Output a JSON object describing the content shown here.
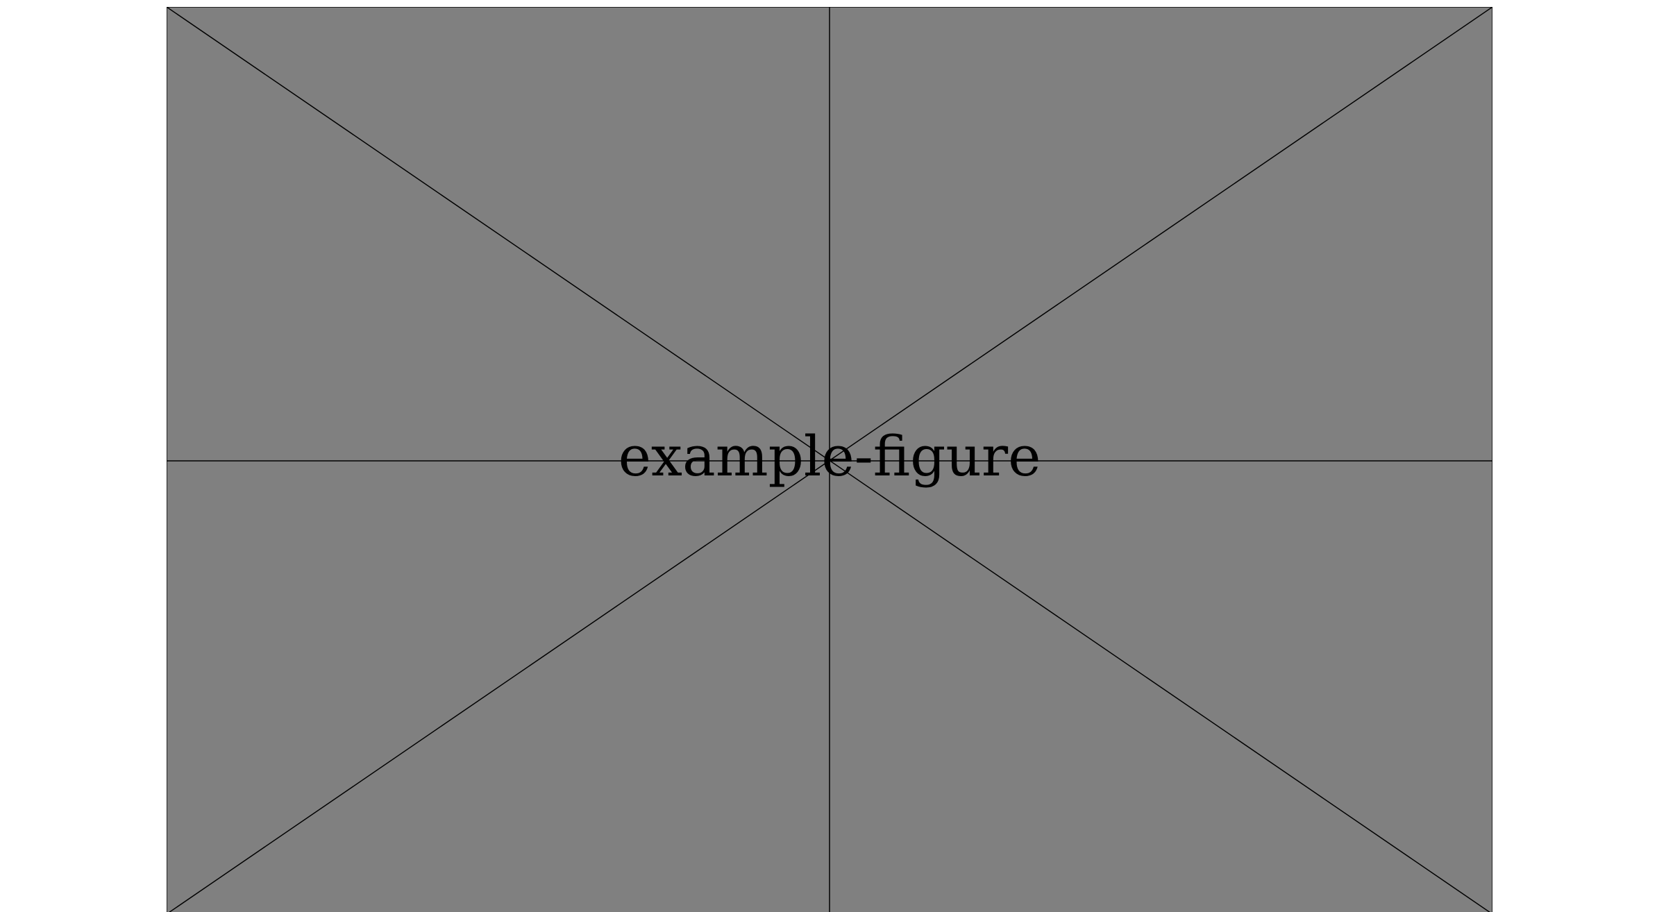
{
  "figure": {
    "label": "example-figure",
    "fill_color": "#808080",
    "line_color": "#000000",
    "background_color": "#ffffff"
  }
}
